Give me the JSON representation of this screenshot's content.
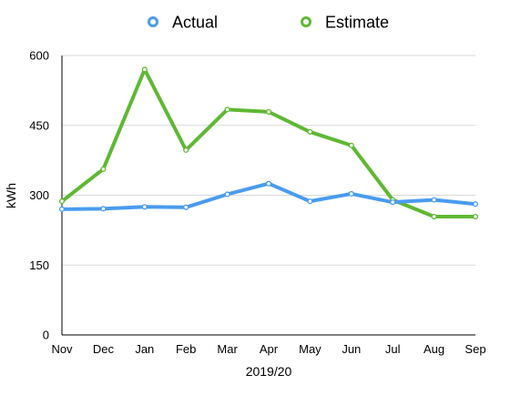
{
  "chart_data": {
    "type": "line",
    "title": "",
    "xlabel": "2019/20",
    "ylabel": "kWh",
    "categories": [
      "Nov",
      "Dec",
      "Jan",
      "Feb",
      "Mar",
      "Apr",
      "May",
      "Jun",
      "Jul",
      "Aug",
      "Sep"
    ],
    "ylim": [
      0,
      600
    ],
    "yticks": [
      "0",
      "150",
      "300",
      "450",
      "600"
    ],
    "grid": "horizontal",
    "legend_position": "top",
    "series": [
      {
        "name": "Actual",
        "color": "#4a9bf0",
        "values": [
          270,
          271,
          275,
          274,
          302,
          325,
          287,
          303,
          285,
          290,
          281
        ]
      },
      {
        "name": "Estimate",
        "color": "#5fb833",
        "values": [
          287,
          356,
          570,
          397,
          484,
          479,
          436,
          407,
          290,
          254,
          254
        ]
      }
    ]
  }
}
